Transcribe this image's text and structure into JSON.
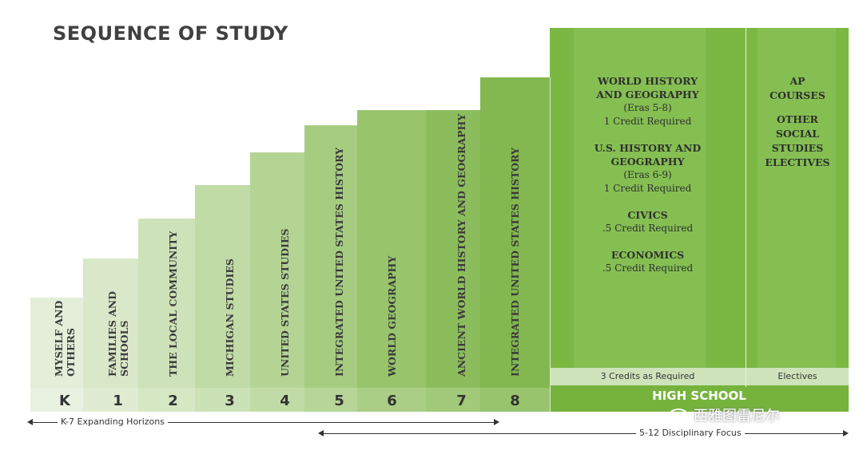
{
  "title": "SEQUENCE OF STUDY",
  "colors": {
    "g1": "#e4eed9",
    "g2": "#d9e8c8",
    "g3": "#cde2b8",
    "g4": "#c0dba6",
    "g5": "#b4d494",
    "g6": "#a6cc80",
    "g7": "#98c46c",
    "g8": "#8cbd5c",
    "g9": "#82b84f",
    "high_school": "#76b33d",
    "hs_band": "#6aac35",
    "bar": "#cfe3ba"
  },
  "columns": [
    {
      "grade": "K",
      "topic": "MYSELF AND\nOTHERS"
    },
    {
      "grade": "1",
      "topic": "FAMILIES AND\nSCHOOLS"
    },
    {
      "grade": "2",
      "topic": "THE LOCAL COMMUNITY"
    },
    {
      "grade": "3",
      "topic": "MICHIGAN STUDIES"
    },
    {
      "grade": "4",
      "topic": "UNITED STATES STUDIES"
    },
    {
      "grade": "5",
      "topic": "INTEGRATED UNITED STATES HISTORY"
    },
    {
      "grade": "6",
      "topic": "WORLD GEOGRAPHY"
    },
    {
      "grade": "7",
      "topic": "ANCIENT WORLD HISTORY AND GEOGRAPHY"
    },
    {
      "grade": "8",
      "topic": "INTEGRATED UNITED STATES HISTORY"
    }
  ],
  "high_school": {
    "label": "HIGH SCHOOL",
    "required": {
      "courses": [
        {
          "name": "WORLD HISTORY\nAND GEOGRAPHY",
          "detail": "(Eras 5-8)",
          "credit": "1 Credit Required"
        },
        {
          "name": "U.S. HISTORY AND\nGEOGRAPHY",
          "detail": "(Eras 6-9)",
          "credit": "1 Credit Required"
        },
        {
          "name": "CIVICS",
          "detail": "",
          "credit": ".5 Credit Required"
        },
        {
          "name": "ECONOMICS",
          "detail": "",
          "credit": ".5 Credit Required"
        }
      ],
      "bar_label": "3 Credits as Required"
    },
    "electives": {
      "text1": "AP\nCOURSES",
      "text2": "OTHER\nSOCIAL\nSTUDIES\nELECTIVES",
      "bar_label": "Electives"
    }
  },
  "arrows": {
    "k7": "K-7 Expanding Horizons",
    "focus": "5-12 Disciplinary Focus"
  },
  "watermark": "西雅图雷尼尔"
}
